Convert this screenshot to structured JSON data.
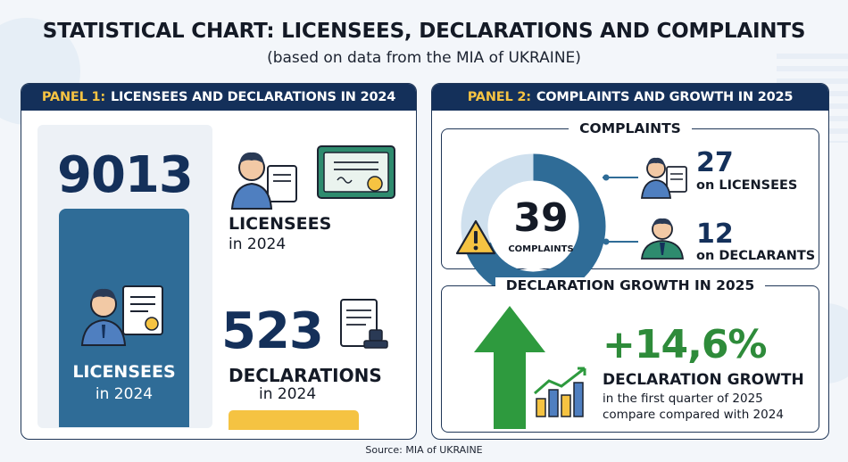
{
  "title": "STATISTICAL CHART: LICENSEES, DECLARATIONS AND COMPLAINTS",
  "subtitle": "(based on data from the MIA of UKRAINE)",
  "panel1": {
    "tag": "PANEL 1:",
    "heading": "LICENSEES AND DECLARATIONS IN 2024",
    "licensees_value": "9013",
    "card_label_1": "LICENSEES",
    "card_label_2": "in 2024",
    "licensees_label": "LICENSEES",
    "licensees_year": "in 2024",
    "declarations_value": "523",
    "declarations_label": "DECLARATIONS",
    "declarations_year": "in 2024"
  },
  "panel2": {
    "tag": "PANEL 2:",
    "heading": "COMPLAINTS AND GROWTH IN 2025",
    "complaints_title": "COMPLAINTS",
    "complaints_total": "39",
    "complaints_label": "COMPLAINTS",
    "on_licensees_value": "27",
    "on_licensees_label": "on LICENSEES",
    "on_declarants_value": "12",
    "on_declarants_label": "on DECLARANTS",
    "growth_title": "DECLARATION GROWTH IN 2025",
    "growth_value": "+14,6%",
    "growth_label": "DECLARATION GROWTH",
    "growth_sub_1": "in the first quarter of 2025",
    "growth_sub_2": "compare compared with 2024"
  },
  "source": "Source: MIA of UKRAINE",
  "colors": {
    "navy": "#14305a",
    "steel_blue": "#2f6c97",
    "light_blue": "#cfe0ee",
    "yellow": "#f5c342",
    "green": "#2e8b3a"
  },
  "chart_data": [
    {
      "type": "bar",
      "categories": [
        "LICENSEES",
        "DECLARATIONS"
      ],
      "values": [
        9013,
        523
      ],
      "title": "LICENSEES AND DECLARATIONS IN 2024"
    },
    {
      "type": "pie",
      "title": "COMPLAINTS",
      "total": 39,
      "categories": [
        "on LICENSEES",
        "on DECLARANTS"
      ],
      "values": [
        27,
        12
      ]
    },
    {
      "type": "table",
      "title": "DECLARATION GROWTH IN 2025",
      "values": [
        14.6
      ],
      "unit": "%"
    }
  ]
}
